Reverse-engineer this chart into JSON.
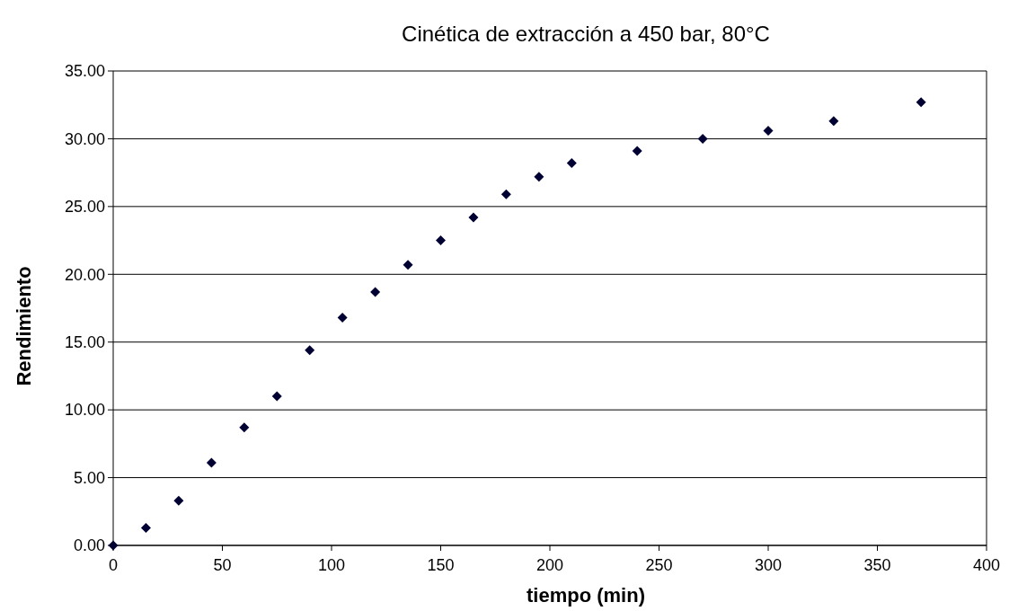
{
  "chart_data": {
    "type": "scatter",
    "title": "Cinética de extracción a 450 bar, 80°C",
    "xlabel": "tiempo (min)",
    "ylabel": "Rendimiento",
    "x": [
      0,
      15,
      30,
      45,
      60,
      75,
      90,
      105,
      120,
      135,
      150,
      165,
      180,
      195,
      210,
      240,
      270,
      300,
      330,
      370
    ],
    "series": [
      {
        "color": "#000033",
        "values": [
          0,
          1.3,
          3.3,
          6.1,
          8.7,
          11.0,
          14.4,
          16.8,
          18.7,
          20.7,
          22.5,
          24.2,
          25.9,
          27.2,
          28.2,
          29.1,
          30.0,
          30.6,
          31.3,
          32.7
        ]
      }
    ],
    "xlim": [
      0,
      400
    ],
    "xticks": [
      0,
      50,
      100,
      150,
      200,
      250,
      300,
      350,
      400
    ],
    "ylim": [
      0,
      35
    ],
    "yticks": [
      {
        "value": 0,
        "label": "0.00"
      },
      {
        "value": 5,
        "label": "5.00"
      },
      {
        "value": 10,
        "label": "10.00"
      },
      {
        "value": 15,
        "label": "15.00"
      },
      {
        "value": 20,
        "label": "20.00"
      },
      {
        "value": 25,
        "label": "25.00"
      },
      {
        "value": 30,
        "label": "30.00"
      },
      {
        "value": 35,
        "label": "35.00"
      }
    ],
    "grid": "y",
    "marker": "diamond"
  }
}
